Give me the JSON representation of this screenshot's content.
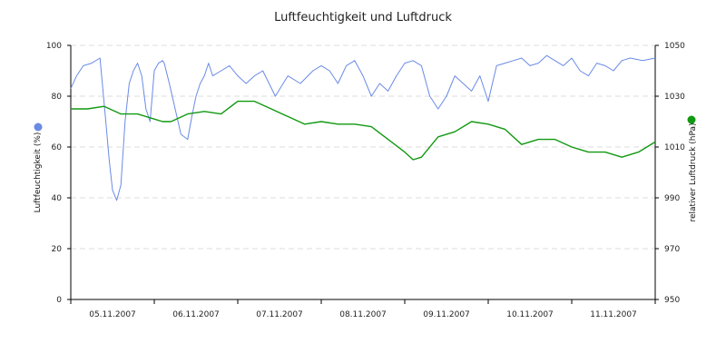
{
  "chart_data": {
    "type": "line",
    "title": "Luftfeuchtigkeit und Luftdruck",
    "xlabel": "",
    "ylabel": "Luftfeuchtigkeit (%)",
    "y2label": "relativer Luftdruck (hPa)",
    "ylim": [
      0,
      100
    ],
    "y2lim": [
      950,
      1050
    ],
    "yticks": [
      0,
      20,
      40,
      60,
      80,
      100
    ],
    "y2ticks": [
      950,
      970,
      990,
      1010,
      1030,
      1050
    ],
    "x_range_days": [
      0,
      7
    ],
    "x_tick_positions": [
      0,
      1,
      2,
      3,
      4,
      5,
      6,
      7
    ],
    "x_tick_labels": [
      "05.11.2007",
      "06.11.2007",
      "07.11.2007",
      "08.11.2007",
      "09.11.2007",
      "10.11.2007",
      "11.11.2007"
    ],
    "grid": true,
    "colors": {
      "humidity": "#6a8ae6",
      "pressure": "#119911"
    },
    "series": [
      {
        "name": "Luftfeuchtigkeit (%)",
        "axis": "left",
        "color": "#6a8ae6",
        "x": [
          0.0,
          0.07,
          0.15,
          0.25,
          0.35,
          0.42,
          0.46,
          0.5,
          0.55,
          0.6,
          0.65,
          0.7,
          0.75,
          0.8,
          0.85,
          0.9,
          0.95,
          1.0,
          1.05,
          1.1,
          1.12,
          1.18,
          1.25,
          1.32,
          1.4,
          1.45,
          1.5,
          1.55,
          1.6,
          1.65,
          1.7,
          1.8,
          1.9,
          2.0,
          2.1,
          2.2,
          2.3,
          2.45,
          2.6,
          2.75,
          2.9,
          3.0,
          3.1,
          3.2,
          3.3,
          3.4,
          3.5,
          3.6,
          3.7,
          3.8,
          3.9,
          4.0,
          4.1,
          4.2,
          4.3,
          4.4,
          4.5,
          4.6,
          4.7,
          4.8,
          4.9,
          5.0,
          5.1,
          5.2,
          5.3,
          5.4,
          5.5,
          5.6,
          5.7,
          5.8,
          5.9,
          6.0,
          6.1,
          6.2,
          6.3,
          6.4,
          6.5,
          6.6,
          6.7,
          6.85,
          7.0
        ],
        "values": [
          83,
          88,
          92,
          93,
          95,
          70,
          55,
          43,
          39,
          45,
          70,
          85,
          90,
          93,
          88,
          75,
          70,
          90,
          93,
          94,
          93,
          85,
          75,
          65,
          63,
          72,
          80,
          85,
          88,
          93,
          88,
          90,
          92,
          88,
          85,
          88,
          90,
          80,
          88,
          85,
          90,
          92,
          90,
          85,
          92,
          94,
          88,
          80,
          85,
          82,
          88,
          93,
          94,
          92,
          80,
          75,
          80,
          88,
          85,
          82,
          88,
          78,
          92,
          93,
          94,
          95,
          92,
          93,
          96,
          94,
          92,
          95,
          90,
          88,
          93,
          92,
          90,
          94,
          95,
          94,
          95
        ]
      },
      {
        "name": "relativer Luftdruck (hPa)",
        "axis": "right",
        "color": "#119911",
        "x": [
          0.0,
          0.2,
          0.4,
          0.6,
          0.8,
          1.0,
          1.1,
          1.2,
          1.4,
          1.6,
          1.8,
          2.0,
          2.2,
          2.4,
          2.6,
          2.8,
          3.0,
          3.2,
          3.4,
          3.6,
          3.8,
          4.0,
          4.1,
          4.2,
          4.4,
          4.6,
          4.8,
          5.0,
          5.2,
          5.4,
          5.6,
          5.8,
          6.0,
          6.2,
          6.4,
          6.6,
          6.8,
          7.0
        ],
        "values": [
          1025,
          1025,
          1026,
          1023,
          1023,
          1021,
          1020,
          1020,
          1023,
          1024,
          1023,
          1028,
          1028,
          1025,
          1022,
          1019,
          1020,
          1019,
          1019,
          1018,
          1013,
          1008,
          1005,
          1006,
          1014,
          1016,
          1020,
          1019,
          1017,
          1011,
          1013,
          1013,
          1010,
          1008,
          1008,
          1006,
          1008,
          1012
        ]
      }
    ]
  }
}
